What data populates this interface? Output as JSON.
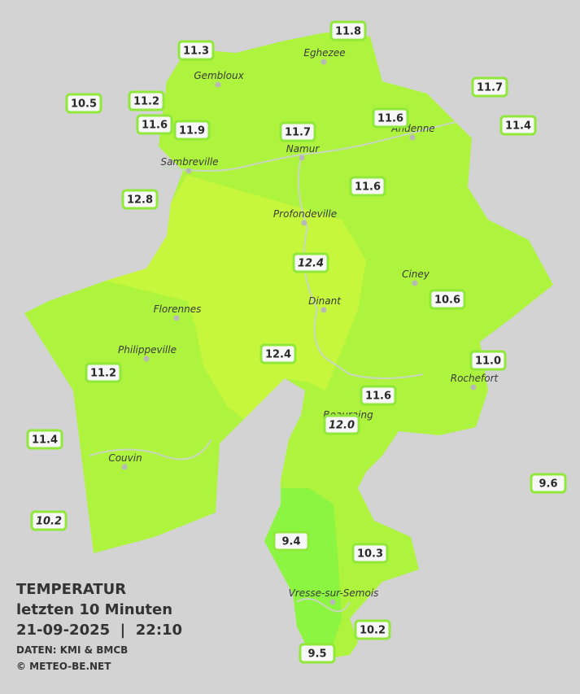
{
  "legend": {
    "title": "TEMPERATUR",
    "subtitle": "letzten 10 Minuten",
    "datetime": "21-09-2025  |  22:10",
    "source": "DATEN: KMI & BMCB",
    "copyright": "© METEO-BE.NET"
  },
  "cities": [
    "Eghezee",
    "Gembloux",
    "Andenne",
    "Namur",
    "Sambreville",
    "Profondeville",
    "Ciney",
    "Dinant",
    "Florennes",
    "Philippeville",
    "Rochefort",
    "Beauraing",
    "Couvin",
    "Vresse-sur-Semois"
  ],
  "stations": [
    "11.8",
    "11.3",
    "10.5",
    "11.2",
    "11.6",
    "11.9",
    "11.7",
    "11.6",
    "11.7",
    "11.4",
    "11.6",
    "12.8",
    "12.4",
    "10.6",
    "12.4",
    "11.0",
    "11.2",
    "11.6",
    "12.0",
    "11.4",
    "9.6",
    "10.2",
    "9.4",
    "10.3",
    "10.2",
    "9.5"
  ]
}
